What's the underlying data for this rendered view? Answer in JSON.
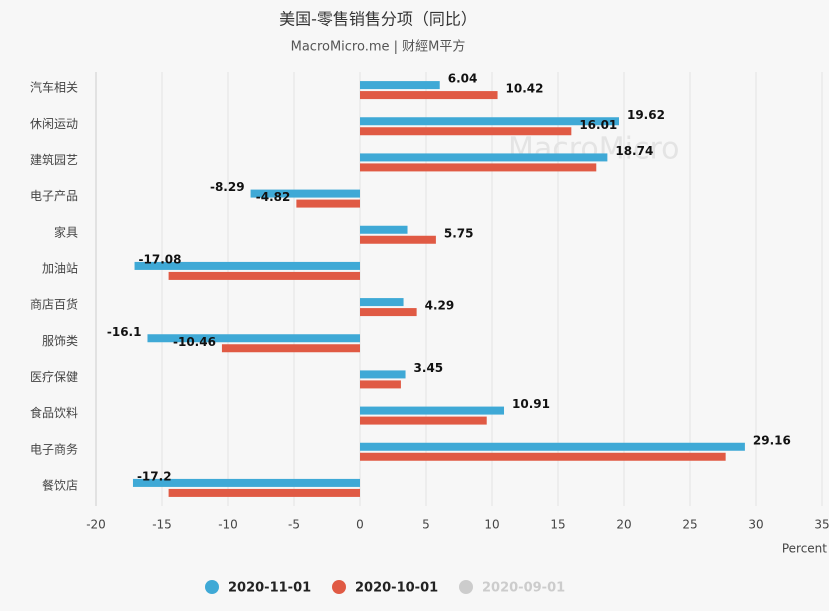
{
  "chart_data": {
    "type": "hbar",
    "title": "美国-零售销售分项（同比）",
    "subtitle": "MacroMicro.me | 财經M平方",
    "watermark": "MacroMicro",
    "xlabel": "Percent",
    "categories": [
      "汽车相关",
      "休闲运动",
      "建筑园艺",
      "电子产品",
      "家具",
      "加油站",
      "商店百货",
      "服饰类",
      "医疗保健",
      "食品饮料",
      "电子商务",
      "餐饮店"
    ],
    "series": [
      {
        "name": "2020-11-01",
        "color": "#3fa9d6",
        "values": [
          6.04,
          19.62,
          18.74,
          -8.29,
          3.6,
          -17.08,
          3.3,
          -16.1,
          3.45,
          10.91,
          29.16,
          -17.2
        ],
        "value_labels": [
          "6.04",
          "19.62",
          "18.74",
          "-8.29",
          null,
          "-17.08",
          null,
          "-16.1",
          "3.45",
          "10.91",
          "29.16",
          "-17.2"
        ]
      },
      {
        "name": "2020-10-01",
        "color": "#e05a44",
        "values": [
          10.42,
          16.01,
          17.9,
          -4.82,
          5.75,
          -14.5,
          4.29,
          -10.46,
          3.1,
          9.6,
          27.7,
          -14.5
        ],
        "value_labels": [
          "10.42",
          "16.01",
          null,
          "-4.82",
          "5.75",
          null,
          "4.29",
          "-10.46",
          null,
          null,
          null,
          null
        ]
      },
      {
        "name": "2020-09-01",
        "color": "#cccccc",
        "visible": false
      }
    ],
    "xlim": [
      -20,
      35
    ],
    "xticks": [
      -20,
      -15,
      -10,
      -5,
      0,
      5,
      10,
      15,
      20,
      25,
      30,
      35
    ],
    "grid": true,
    "legend": "bottom"
  }
}
